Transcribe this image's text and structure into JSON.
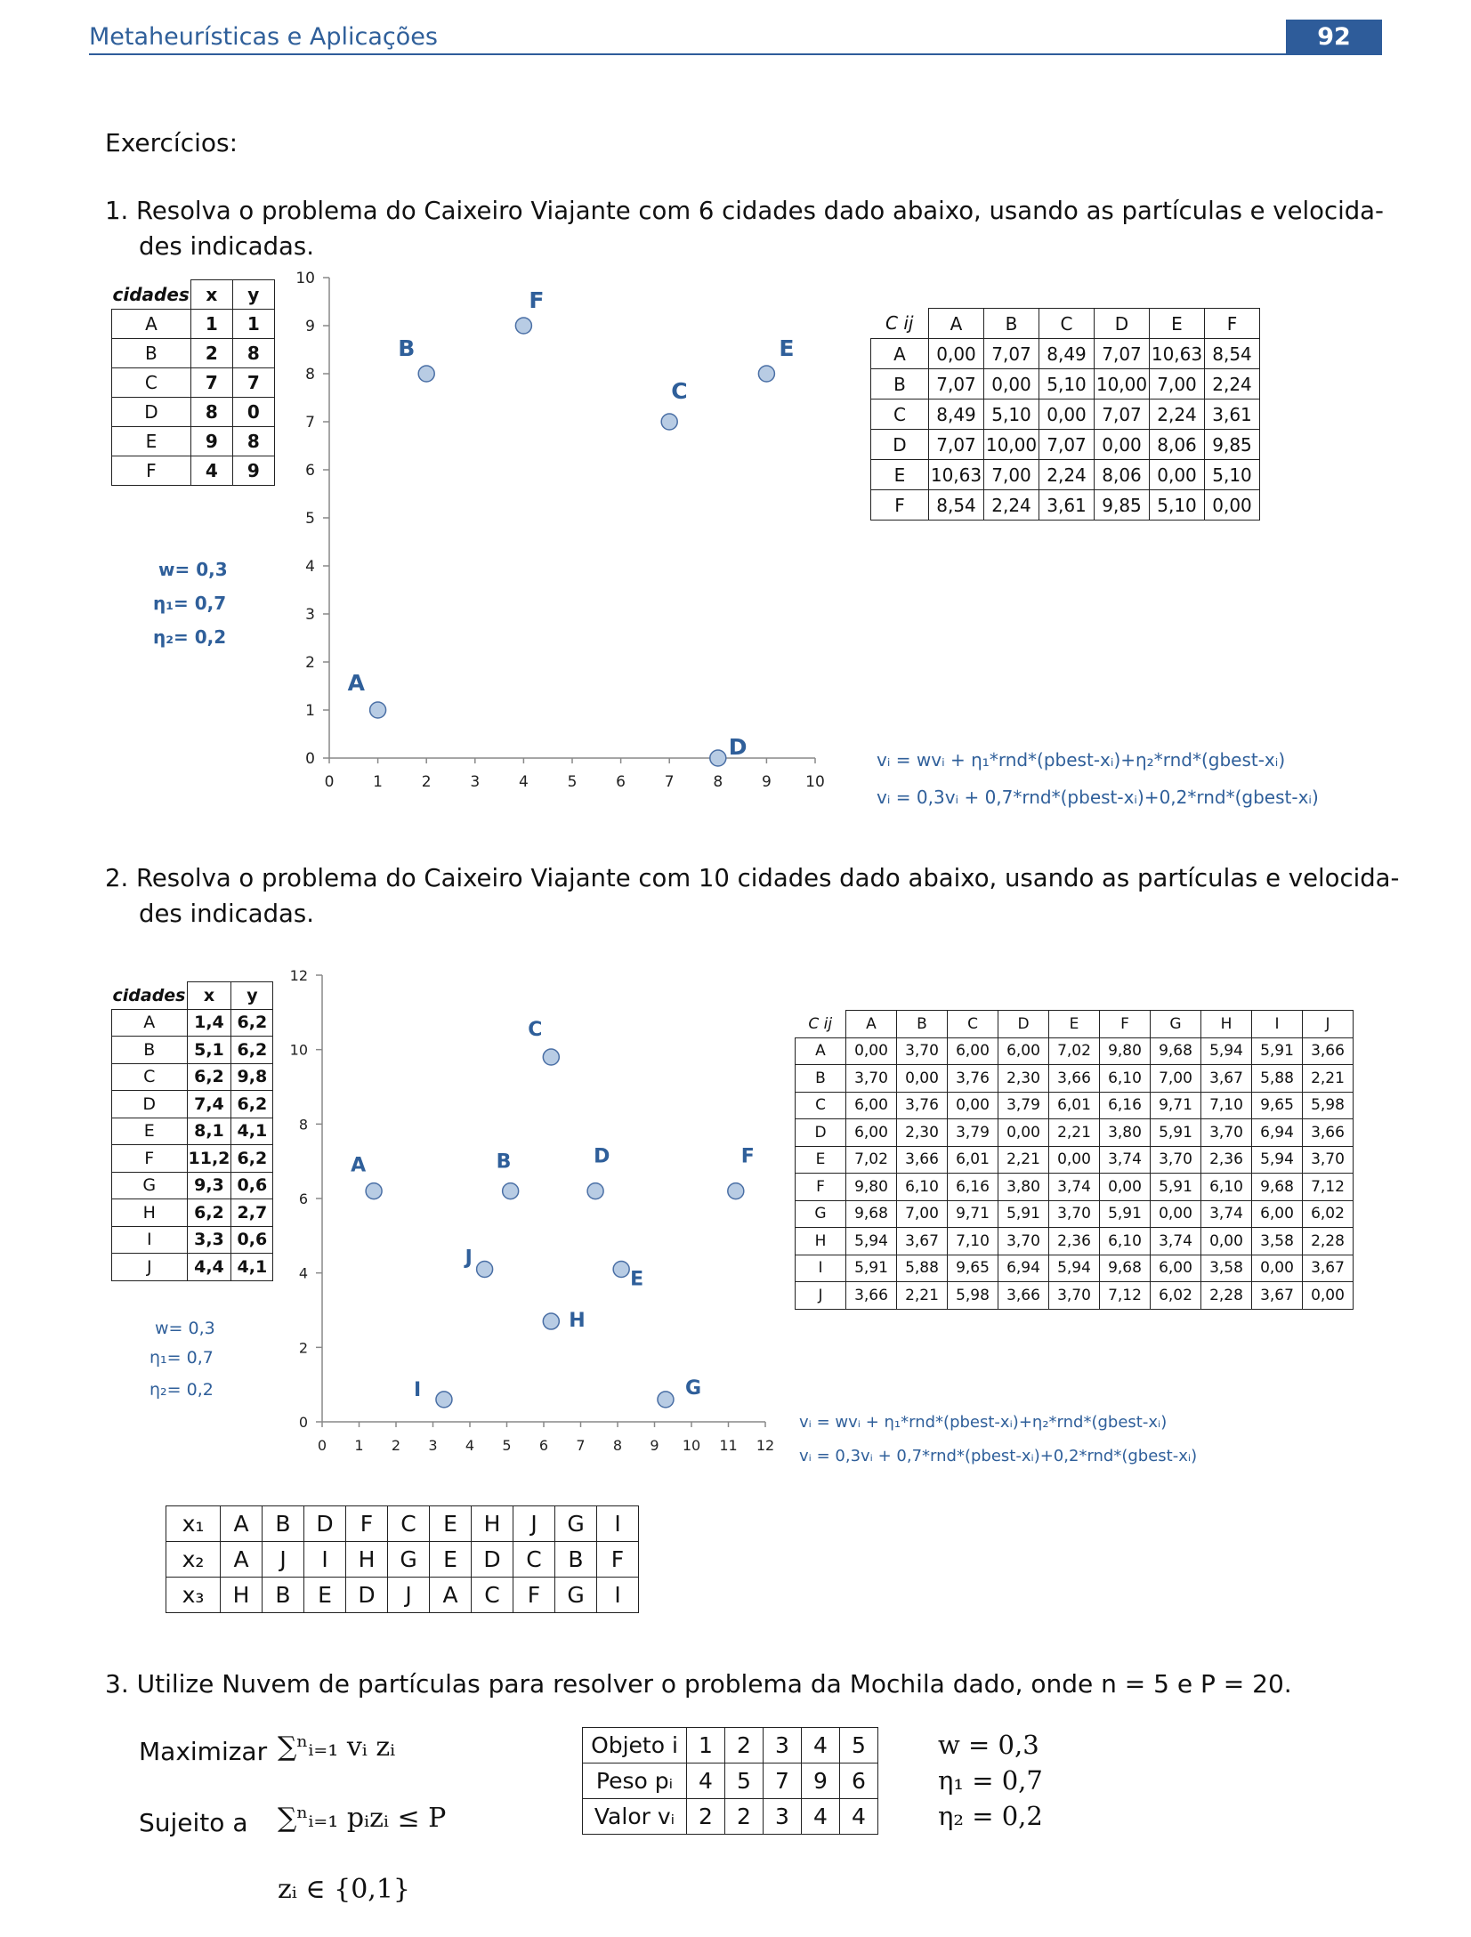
{
  "header": {
    "title": "Metaheurísticas e Aplicações",
    "page_number": "92"
  },
  "section_title": "Exercícios:",
  "ex1": {
    "text_line1": "1. Resolva o problema do Caixeiro Viajante com 6 cidades dado abaixo, usando as partículas e velocida-",
    "text_line2": "des indicadas.",
    "cities_header": [
      "cidades",
      "x",
      "y"
    ],
    "cities": [
      [
        "A",
        "1",
        "1"
      ],
      [
        "B",
        "2",
        "8"
      ],
      [
        "C",
        "7",
        "7"
      ],
      [
        "D",
        "8",
        "0"
      ],
      [
        "E",
        "9",
        "8"
      ],
      [
        "F",
        "4",
        "9"
      ]
    ],
    "params": [
      "w= 0,3",
      "η₁= 0,7",
      "η₂= 0,2"
    ],
    "dist_header": [
      "C ij",
      "A",
      "B",
      "C",
      "D",
      "E",
      "F"
    ],
    "dist": [
      [
        "A",
        "0,00",
        "7,07",
        "8,49",
        "7,07",
        "10,63",
        "8,54"
      ],
      [
        "B",
        "7,07",
        "0,00",
        "5,10",
        "10,00",
        "7,00",
        "2,24"
      ],
      [
        "C",
        "8,49",
        "5,10",
        "0,00",
        "7,07",
        "2,24",
        "3,61"
      ],
      [
        "D",
        "7,07",
        "10,00",
        "7,07",
        "0,00",
        "8,06",
        "9,85"
      ],
      [
        "E",
        "10,63",
        "7,00",
        "2,24",
        "8,06",
        "0,00",
        "5,10"
      ],
      [
        "F",
        "8,54",
        "2,24",
        "3,61",
        "9,85",
        "5,10",
        "0,00"
      ]
    ],
    "formula1": "vᵢ = wvᵢ + η₁*rnd*(pbest-xᵢ)+η₂*rnd*(gbest-xᵢ)",
    "formula2": "vᵢ = 0,3vᵢ + 0,7*rnd*(pbest-xᵢ)+0,2*rnd*(gbest-xᵢ)"
  },
  "ex2": {
    "text_line1": "2. Resolva o problema do Caixeiro Viajante com 10 cidades dado abaixo, usando as partículas e velocida-",
    "text_line2": "des indicadas.",
    "cities_header": [
      "cidades",
      "x",
      "y"
    ],
    "cities": [
      [
        "A",
        "1,4",
        "6,2"
      ],
      [
        "B",
        "5,1",
        "6,2"
      ],
      [
        "C",
        "6,2",
        "9,8"
      ],
      [
        "D",
        "7,4",
        "6,2"
      ],
      [
        "E",
        "8,1",
        "4,1"
      ],
      [
        "F",
        "11,2",
        "6,2"
      ],
      [
        "G",
        "9,3",
        "0,6"
      ],
      [
        "H",
        "6,2",
        "2,7"
      ],
      [
        "I",
        "3,3",
        "0,6"
      ],
      [
        "J",
        "4,4",
        "4,1"
      ]
    ],
    "params": [
      "w= 0,3",
      "η₁= 0,7",
      "η₂= 0,2"
    ],
    "dist_header": [
      "C ij",
      "A",
      "B",
      "C",
      "D",
      "E",
      "F",
      "G",
      "H",
      "I",
      "J"
    ],
    "dist": [
      [
        "A",
        "0,00",
        "3,70",
        "6,00",
        "6,00",
        "7,02",
        "9,80",
        "9,68",
        "5,94",
        "5,91",
        "3,66"
      ],
      [
        "B",
        "3,70",
        "0,00",
        "3,76",
        "2,30",
        "3,66",
        "6,10",
        "7,00",
        "3,67",
        "5,88",
        "2,21"
      ],
      [
        "C",
        "6,00",
        "3,76",
        "0,00",
        "3,79",
        "6,01",
        "6,16",
        "9,71",
        "7,10",
        "9,65",
        "5,98"
      ],
      [
        "D",
        "6,00",
        "2,30",
        "3,79",
        "0,00",
        "2,21",
        "3,80",
        "5,91",
        "3,70",
        "6,94",
        "3,66"
      ],
      [
        "E",
        "7,02",
        "3,66",
        "6,01",
        "2,21",
        "0,00",
        "3,74",
        "3,70",
        "2,36",
        "5,94",
        "3,70"
      ],
      [
        "F",
        "9,80",
        "6,10",
        "6,16",
        "3,80",
        "3,74",
        "0,00",
        "5,91",
        "6,10",
        "9,68",
        "7,12"
      ],
      [
        "G",
        "9,68",
        "7,00",
        "9,71",
        "5,91",
        "3,70",
        "5,91",
        "0,00",
        "3,74",
        "6,00",
        "6,02"
      ],
      [
        "H",
        "5,94",
        "3,67",
        "7,10",
        "3,70",
        "2,36",
        "6,10",
        "3,74",
        "0,00",
        "3,58",
        "2,28"
      ],
      [
        "I",
        "5,91",
        "5,88",
        "9,65",
        "6,94",
        "5,94",
        "9,68",
        "6,00",
        "3,58",
        "0,00",
        "3,67"
      ],
      [
        "J",
        "3,66",
        "2,21",
        "5,98",
        "3,66",
        "3,70",
        "7,12",
        "6,02",
        "2,28",
        "3,67",
        "0,00"
      ]
    ],
    "formula1": "vᵢ = wvᵢ + η₁*rnd*(pbest-xᵢ)+η₂*rnd*(gbest-xᵢ)",
    "formula2": "vᵢ = 0,3vᵢ + 0,7*rnd*(pbest-xᵢ)+0,2*rnd*(gbest-xᵢ)",
    "particles": [
      [
        "x₁",
        "A",
        "B",
        "D",
        "F",
        "C",
        "E",
        "H",
        "J",
        "G",
        "I"
      ],
      [
        "x₂",
        "A",
        "J",
        "I",
        "H",
        "G",
        "E",
        "D",
        "C",
        "B",
        "F"
      ],
      [
        "x₃",
        "H",
        "B",
        "E",
        "D",
        "J",
        "A",
        "C",
        "F",
        "G",
        "I"
      ]
    ]
  },
  "ex3": {
    "text": "3. Utilize Nuvem de partículas para resolver o problema da Mochila dado, onde n = 5 e P = 20.",
    "maximize_label": "Maximizar",
    "maximize_expr": "∑ⁿᵢ₌₁ vᵢ zᵢ",
    "subject_label": "Sujeito a",
    "subject_expr": "∑ⁿᵢ₌₁ pᵢzᵢ ≤ P",
    "domain_expr": "zᵢ ∈ {0,1}",
    "table": [
      [
        "Objeto i",
        "1",
        "2",
        "3",
        "4",
        "5"
      ],
      [
        "Peso pᵢ",
        "4",
        "5",
        "7",
        "9",
        "6"
      ],
      [
        "Valor vᵢ",
        "2",
        "2",
        "3",
        "4",
        "4"
      ]
    ],
    "params": [
      "w = 0,3",
      "η₁ = 0,7",
      "η₂ = 0,2"
    ]
  },
  "chart_data": [
    {
      "type": "scatter",
      "xlim": [
        0,
        10
      ],
      "ylim": [
        0,
        10
      ],
      "xticks": [
        "0",
        "1",
        "2",
        "3",
        "4",
        "5",
        "6",
        "7",
        "8",
        "9",
        "10"
      ],
      "yticks": [
        "0",
        "1",
        "2",
        "3",
        "4",
        "5",
        "6",
        "7",
        "8",
        "9",
        "10"
      ],
      "points": [
        {
          "label": "A",
          "x": 1,
          "y": 1
        },
        {
          "label": "B",
          "x": 2,
          "y": 8
        },
        {
          "label": "C",
          "x": 7,
          "y": 7
        },
        {
          "label": "D",
          "x": 8,
          "y": 0
        },
        {
          "label": "E",
          "x": 9,
          "y": 8
        },
        {
          "label": "F",
          "x": 4,
          "y": 9
        }
      ],
      "point_color": "#b8cce4",
      "label_color": "#2f5f9a"
    },
    {
      "type": "scatter",
      "xlim": [
        0,
        12
      ],
      "ylim": [
        0,
        12
      ],
      "xticks": [
        "0",
        "1",
        "2",
        "3",
        "4",
        "5",
        "6",
        "7",
        "8",
        "9",
        "10",
        "11",
        "12"
      ],
      "yticks": [
        "0",
        "2",
        "4",
        "6",
        "8",
        "10",
        "12"
      ],
      "points": [
        {
          "label": "A",
          "x": 1.4,
          "y": 6.2
        },
        {
          "label": "B",
          "x": 5.1,
          "y": 6.2
        },
        {
          "label": "C",
          "x": 6.2,
          "y": 9.8
        },
        {
          "label": "D",
          "x": 7.4,
          "y": 6.2
        },
        {
          "label": "E",
          "x": 8.1,
          "y": 4.1
        },
        {
          "label": "F",
          "x": 11.2,
          "y": 6.2
        },
        {
          "label": "G",
          "x": 9.3,
          "y": 0.6
        },
        {
          "label": "H",
          "x": 6.2,
          "y": 2.7
        },
        {
          "label": "I",
          "x": 3.3,
          "y": 0.6
        },
        {
          "label": "J",
          "x": 4.4,
          "y": 4.1
        }
      ],
      "point_color": "#b8cce4",
      "label_color": "#2f5f9a"
    }
  ]
}
